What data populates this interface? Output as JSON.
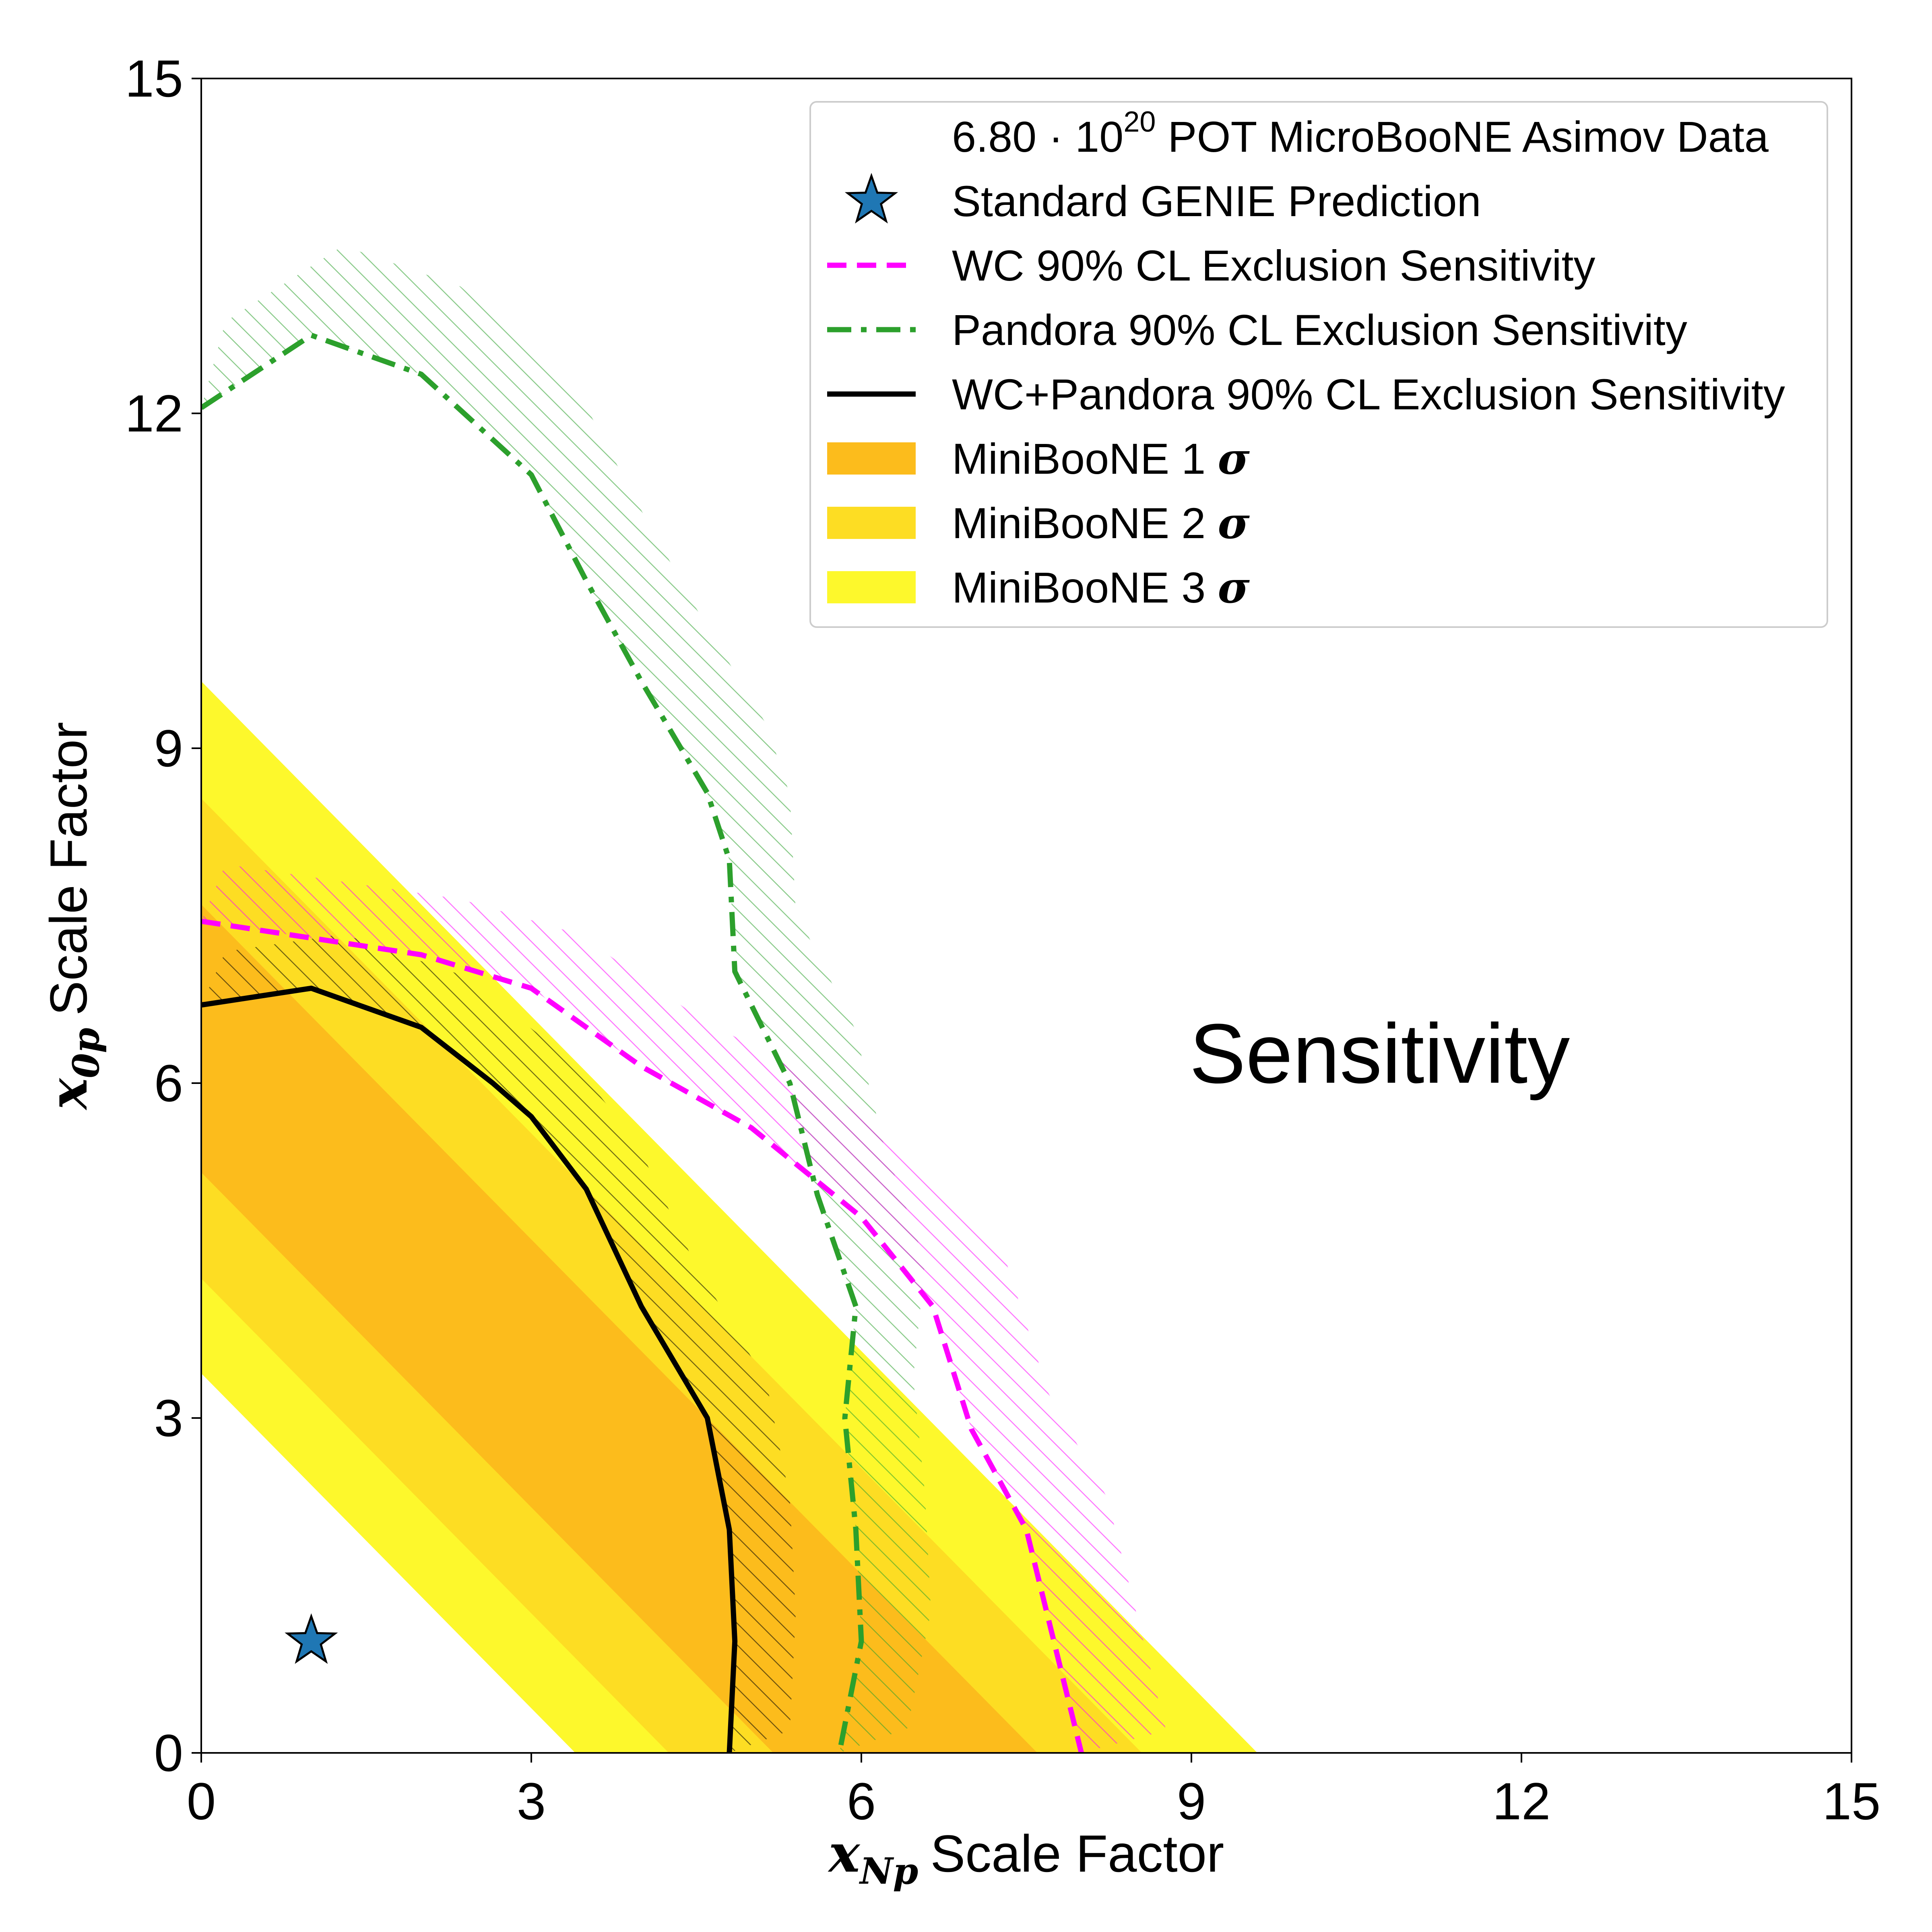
{
  "chart_data": {
    "type": "contour",
    "title": "",
    "xlabel": {
      "symbol": "x",
      "sub": "Np",
      "text": "Scale Factor"
    },
    "ylabel": {
      "symbol": "x",
      "sub": "0p",
      "text": "Scale Factor"
    },
    "xlim": [
      0,
      15
    ],
    "ylim": [
      0,
      15
    ],
    "xticks": [
      0,
      3,
      6,
      9,
      12,
      15
    ],
    "yticks": [
      0,
      3,
      6,
      9,
      12,
      15
    ],
    "xtick_labels": [
      "0",
      "3",
      "6",
      "9",
      "12",
      "15"
    ],
    "ytick_labels": [
      "0",
      "3",
      "6",
      "9",
      "12",
      "15"
    ],
    "annotation": "Sensitivity",
    "colors": {
      "sigma1": "#fcbc1c",
      "sigma2": "#fddd23",
      "sigma3": "#fdf82c",
      "wc": "#ff00ff",
      "pandora": "#2ca02c",
      "combined": "#000000",
      "star": "#1f77b4"
    },
    "miniboone_bands": {
      "center_sum": 6.4,
      "sigma1": {
        "sum_range": [
          5.2,
          7.6
        ]
      },
      "sigma2": {
        "sum_range": [
          4.25,
          8.55
        ]
      },
      "sigma3": {
        "sum_range": [
          3.4,
          9.6
        ]
      }
    },
    "prediction_point": {
      "x": 1,
      "y": 1
    },
    "series": [
      {
        "name": "WC 90% CL Exclusion Sensitivity",
        "style": "dashed",
        "points": [
          [
            0,
            7.45
          ],
          [
            1,
            7.3
          ],
          [
            2,
            7.15
          ],
          [
            3,
            6.85
          ],
          [
            4,
            6.15
          ],
          [
            5,
            5.6
          ],
          [
            6,
            4.8
          ],
          [
            6.65,
            4.0
          ],
          [
            7.0,
            2.9
          ],
          [
            7.5,
            2.0
          ],
          [
            8.0,
            0
          ]
        ]
      },
      {
        "name": "Pandora 90% CL Exclusion Sensitivity",
        "style": "dashdot",
        "points": [
          [
            0,
            12.05
          ],
          [
            1,
            12.7
          ],
          [
            2,
            12.35
          ],
          [
            3,
            11.45
          ],
          [
            3.5,
            10.5
          ],
          [
            4,
            9.6
          ],
          [
            4.6,
            8.6
          ],
          [
            4.8,
            8.0
          ],
          [
            4.85,
            7.0
          ],
          [
            5.35,
            6.0
          ],
          [
            5.6,
            5.0
          ],
          [
            5.95,
            4.0
          ],
          [
            5.85,
            3.0
          ],
          [
            5.95,
            2.0
          ],
          [
            6.0,
            1.0
          ],
          [
            5.8,
            0
          ]
        ]
      },
      {
        "name": "WC+Pandora 90% CL Exclusion Sensitivity",
        "style": "solid",
        "points": [
          [
            0,
            6.7
          ],
          [
            1,
            6.85
          ],
          [
            2,
            6.5
          ],
          [
            2.65,
            6.0
          ],
          [
            3.0,
            5.7
          ],
          [
            3.5,
            5.05
          ],
          [
            4.0,
            4.0
          ],
          [
            4.6,
            3.0
          ],
          [
            4.8,
            2.0
          ],
          [
            4.85,
            1.0
          ],
          [
            4.8,
            0
          ]
        ]
      }
    ],
    "legend": {
      "location": "upper right",
      "entries": [
        {
          "type": "data",
          "text": "6.80 · 10",
          "sup": "20",
          "text_after": " POT MicroBooNE Asimov Data"
        },
        {
          "type": "star",
          "text": "Standard GENIE Prediction"
        },
        {
          "type": "dashed",
          "text": "WC 90% CL Exclusion Sensitivity"
        },
        {
          "type": "dashdot",
          "text": "Pandora 90% CL Exclusion Sensitivity"
        },
        {
          "type": "solid",
          "text": "WC+Pandora 90% CL Exclusion Sensitivity"
        },
        {
          "type": "patch1",
          "text": "MiniBooNE 1 ",
          "sigma": "σ"
        },
        {
          "type": "patch2",
          "text": "MiniBooNE 2 ",
          "sigma": "σ"
        },
        {
          "type": "patch3",
          "text": "MiniBooNE 3 ",
          "sigma": "σ"
        }
      ]
    }
  }
}
